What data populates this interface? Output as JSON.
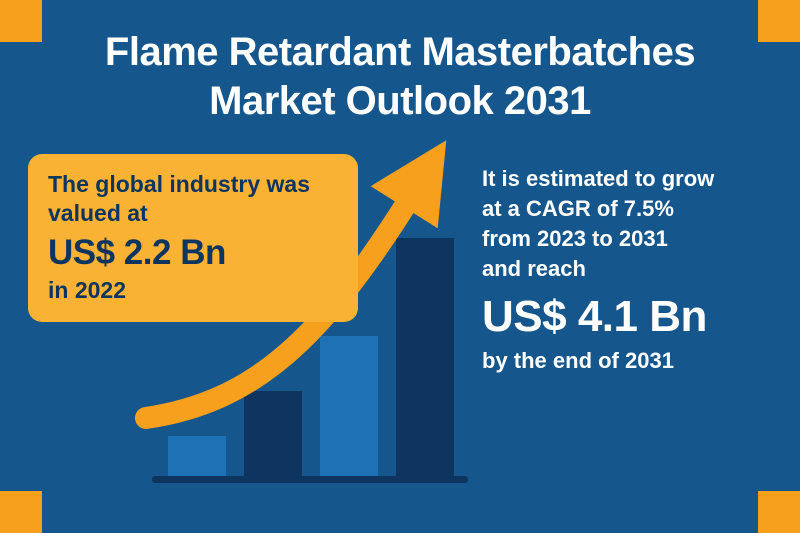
{
  "title": {
    "line1": "Flame Retardant Masterbatches",
    "line2": "Market Outlook 2031"
  },
  "left_card": {
    "lines": [
      "The global industry was",
      "valued at"
    ],
    "value": "US$ 2.2 Bn",
    "period": "in 2022"
  },
  "right_text": {
    "lines": [
      "It is estimated to grow",
      "at a CAGR of 7.5%",
      "from 2023 to 2031",
      "and reach"
    ],
    "value": "US$ 4.1 Bn",
    "suffix": "by the end of 2031"
  },
  "chart_data": {
    "type": "bar",
    "title": "Flame Retardant Masterbatches Market Outlook 2031",
    "categories": [
      "",
      "",
      "",
      ""
    ],
    "values": [
      40,
      85,
      140,
      238
    ],
    "value_unit": "relative bar height in px (bars are decorative, no axis or tick labels shown)",
    "bar_colors": [
      "#1e71b4",
      "#0d3560",
      "#1e71b4",
      "#0d3560"
    ],
    "stated_facts": {
      "market_value_2022": "US$ 2.2 Bn",
      "market_value_2031": "US$ 4.1 Bn",
      "cagr_2023_2031": "7.5%"
    },
    "annotations": [
      "upward curved orange arrow over the bars indicating growth"
    ],
    "legend": "none",
    "grid": false
  },
  "colors": {
    "background": "#15568c",
    "accent_orange": "#f7a01d",
    "card_background": "#f9b233",
    "bar_light": "#1e71b4",
    "bar_dark": "#0d3560",
    "text_dark": "#0d3560",
    "text_light": "#ffffff"
  }
}
